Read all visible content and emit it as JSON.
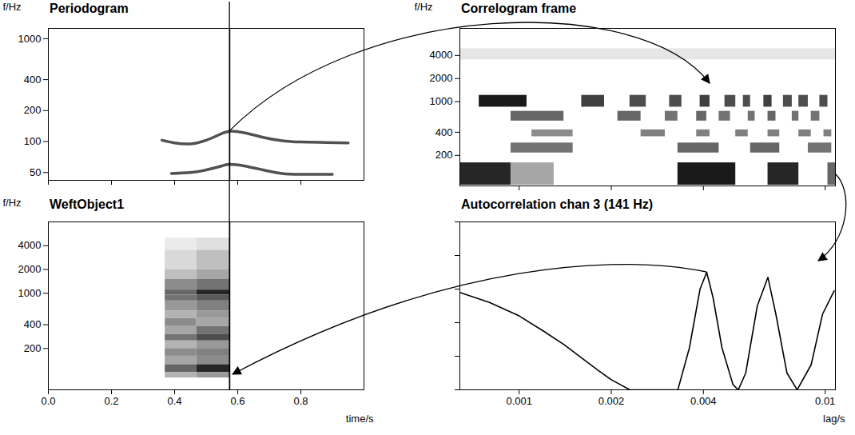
{
  "chart_data": [
    {
      "type": "line",
      "title": "Periodogram",
      "y_label": "f/Hz",
      "log": "y",
      "xlim": [
        0,
        1
      ],
      "xticks": [
        0,
        0.2,
        0.4,
        0.6,
        0.8
      ],
      "ylim": [
        42,
        1260
      ],
      "yticks": [
        50,
        100,
        200,
        400,
        1000
      ],
      "tick_labels": "y",
      "cursor_time": 0.575,
      "series": [
        {
          "color": "#333333",
          "x": [
            0.36,
            0.4,
            0.45,
            0.5,
            0.55,
            0.575,
            0.62,
            0.68,
            0.74,
            0.8,
            0.88,
            0.95
          ],
          "values": [
            103,
            97,
            95,
            103,
            120,
            126,
            122,
            110,
            102,
            99,
            98,
            97
          ]
        },
        {
          "color": "#333333",
          "x": [
            0.39,
            0.45,
            0.5,
            0.55,
            0.575,
            0.62,
            0.68,
            0.74,
            0.8,
            0.9
          ],
          "values": [
            49,
            50,
            53,
            58,
            60,
            58,
            53,
            49,
            48,
            48
          ]
        }
      ]
    },
    {
      "type": "heatmap",
      "title": "Correlogram frame",
      "y_label": "f/Hz",
      "log": true,
      "xlim": [
        0.00064,
        0.0108
      ],
      "xticks": [
        0.001,
        0.002,
        0.004,
        0.01
      ],
      "ylim": [
        80,
        9000
      ],
      "yticks": [
        200,
        400,
        1000,
        2000,
        4000
      ],
      "tick_labels": "y",
      "color": "#000000",
      "zlim": [
        0,
        1
      ],
      "cells": [
        {
          "x": [
            0.00064,
            0.0108
          ],
          "y": [
            3500,
            4900
          ],
          "value": 0.1
        },
        {
          "x": [
            0.00074,
            0.00106
          ],
          "y": [
            850,
            1210
          ],
          "value": 0.9
        },
        {
          "x": [
            0.0016,
            0.0019
          ],
          "y": [
            850,
            1210
          ],
          "value": 0.75
        },
        {
          "x": [
            0.0023,
            0.0026
          ],
          "y": [
            850,
            1210
          ],
          "value": 0.7
        },
        {
          "x": [
            0.0031,
            0.0034
          ],
          "y": [
            850,
            1210
          ],
          "value": 0.7
        },
        {
          "x": [
            0.0039,
            0.0042
          ],
          "y": [
            850,
            1210
          ],
          "value": 0.75
        },
        {
          "x": [
            0.0047,
            0.0051
          ],
          "y": [
            850,
            1210
          ],
          "value": 0.7
        },
        {
          "x": [
            0.0054,
            0.0057
          ],
          "y": [
            850,
            1210
          ],
          "value": 0.7
        },
        {
          "x": [
            0.0063,
            0.0067
          ],
          "y": [
            850,
            1210
          ],
          "value": 0.75
        },
        {
          "x": [
            0.0073,
            0.0078
          ],
          "y": [
            850,
            1210
          ],
          "value": 0.7
        },
        {
          "x": [
            0.0082,
            0.0088
          ],
          "y": [
            850,
            1210
          ],
          "value": 0.7
        },
        {
          "x": [
            0.0096,
            0.0102
          ],
          "y": [
            850,
            1210
          ],
          "value": 0.7
        },
        {
          "x": [
            0.00094,
            0.0014
          ],
          "y": [
            560,
            750
          ],
          "value": 0.6
        },
        {
          "x": [
            0.0021,
            0.0025
          ],
          "y": [
            560,
            750
          ],
          "value": 0.6
        },
        {
          "x": [
            0.003,
            0.0033
          ],
          "y": [
            560,
            750
          ],
          "value": 0.55
        },
        {
          "x": [
            0.0038,
            0.0041
          ],
          "y": [
            560,
            750
          ],
          "value": 0.6
        },
        {
          "x": [
            0.0045,
            0.0049
          ],
          "y": [
            560,
            750
          ],
          "value": 0.55
        },
        {
          "x": [
            0.0056,
            0.0059
          ],
          "y": [
            560,
            750
          ],
          "value": 0.55
        },
        {
          "x": [
            0.0065,
            0.0069
          ],
          "y": [
            560,
            750
          ],
          "value": 0.6
        },
        {
          "x": [
            0.0078,
            0.0082
          ],
          "y": [
            560,
            750
          ],
          "value": 0.55
        },
        {
          "x": [
            0.009,
            0.0096
          ],
          "y": [
            560,
            750
          ],
          "value": 0.55
        },
        {
          "x": [
            0.0011,
            0.0015
          ],
          "y": [
            350,
            430
          ],
          "value": 0.45
        },
        {
          "x": [
            0.0025,
            0.003
          ],
          "y": [
            350,
            430
          ],
          "value": 0.5
        },
        {
          "x": [
            0.0038,
            0.0042
          ],
          "y": [
            350,
            430
          ],
          "value": 0.5
        },
        {
          "x": [
            0.0051,
            0.0056
          ],
          "y": [
            350,
            430
          ],
          "value": 0.5
        },
        {
          "x": [
            0.0065,
            0.0071
          ],
          "y": [
            350,
            430
          ],
          "value": 0.5
        },
        {
          "x": [
            0.0082,
            0.009
          ],
          "y": [
            350,
            430
          ],
          "value": 0.5
        },
        {
          "x": [
            0.0099,
            0.0105
          ],
          "y": [
            350,
            430
          ],
          "value": 0.5
        },
        {
          "x": [
            0.00094,
            0.0015
          ],
          "y": [
            215,
            290
          ],
          "value": 0.55
        },
        {
          "x": [
            0.0033,
            0.0045
          ],
          "y": [
            215,
            290
          ],
          "value": 0.6
        },
        {
          "x": [
            0.0057,
            0.0071
          ],
          "y": [
            215,
            290
          ],
          "value": 0.6
        },
        {
          "x": [
            0.0088,
            0.0105
          ],
          "y": [
            215,
            290
          ],
          "value": 0.55
        },
        {
          "x": [
            0.00064,
            0.00094
          ],
          "y": [
            82,
            160
          ],
          "value": 0.85
        },
        {
          "x": [
            0.00094,
            0.0013
          ],
          "y": [
            82,
            160
          ],
          "value": 0.35
        },
        {
          "x": [
            0.0033,
            0.0051
          ],
          "y": [
            82,
            160
          ],
          "value": 0.9
        },
        {
          "x": [
            0.0065,
            0.0082
          ],
          "y": [
            82,
            160
          ],
          "value": 0.85
        },
        {
          "x": [
            0.0102,
            0.0108
          ],
          "y": [
            82,
            160
          ],
          "value": 0.6
        }
      ]
    },
    {
      "type": "heatmap",
      "title": "WeftObject1",
      "y_label": "f/Hz",
      "x_label": "time/s",
      "log": "y",
      "xlim": [
        0,
        1
      ],
      "xticks": [
        {
          "value": 0,
          "label": "0.0"
        },
        0.2,
        0.4,
        0.6,
        0.8
      ],
      "ylim": [
        60,
        8000
      ],
      "yticks": [
        200,
        400,
        1000,
        2000,
        4000
      ],
      "cursor_time": 0.575,
      "color": "#000000",
      "zlim": [
        0,
        1
      ],
      "cells": [
        {
          "x": [
            0.37,
            0.47
          ],
          "y": [
            3500,
            5000
          ],
          "value": 0.08
        },
        {
          "x": [
            0.47,
            0.575
          ],
          "y": [
            3500,
            5000
          ],
          "value": 0.12
        },
        {
          "x": [
            0.37,
            0.47
          ],
          "y": [
            2000,
            3500
          ],
          "value": 0.15
        },
        {
          "x": [
            0.47,
            0.575
          ],
          "y": [
            2000,
            3500
          ],
          "value": 0.25
        },
        {
          "x": [
            0.37,
            0.47
          ],
          "y": [
            1500,
            2000
          ],
          "value": 0.25
        },
        {
          "x": [
            0.47,
            0.575
          ],
          "y": [
            1500,
            2000
          ],
          "value": 0.35
        },
        {
          "x": [
            0.37,
            0.47
          ],
          "y": [
            1100,
            1500
          ],
          "value": 0.45
        },
        {
          "x": [
            0.47,
            0.575
          ],
          "y": [
            1100,
            1500
          ],
          "value": 0.55
        },
        {
          "x": [
            0.37,
            0.47
          ],
          "y": [
            950,
            1100
          ],
          "value": 0.6
        },
        {
          "x": [
            0.47,
            0.575
          ],
          "y": [
            950,
            1100
          ],
          "value": 0.85
        },
        {
          "x": [
            0.37,
            0.47
          ],
          "y": [
            800,
            950
          ],
          "value": 0.55
        },
        {
          "x": [
            0.47,
            0.575
          ],
          "y": [
            800,
            950
          ],
          "value": 0.65
        },
        {
          "x": [
            0.37,
            0.47
          ],
          "y": [
            600,
            800
          ],
          "value": 0.4
        },
        {
          "x": [
            0.47,
            0.575
          ],
          "y": [
            600,
            800
          ],
          "value": 0.5
        },
        {
          "x": [
            0.37,
            0.47
          ],
          "y": [
            480,
            600
          ],
          "value": 0.3
        },
        {
          "x": [
            0.47,
            0.575
          ],
          "y": [
            480,
            600
          ],
          "value": 0.4
        },
        {
          "x": [
            0.37,
            0.47
          ],
          "y": [
            380,
            480
          ],
          "value": 0.45
        },
        {
          "x": [
            0.47,
            0.575
          ],
          "y": [
            380,
            480
          ],
          "value": 0.35
        },
        {
          "x": [
            0.37,
            0.47
          ],
          "y": [
            300,
            380
          ],
          "value": 0.35
        },
        {
          "x": [
            0.47,
            0.575
          ],
          "y": [
            300,
            380
          ],
          "value": 0.55
        },
        {
          "x": [
            0.37,
            0.47
          ],
          "y": [
            250,
            300
          ],
          "value": 0.55
        },
        {
          "x": [
            0.47,
            0.575
          ],
          "y": [
            250,
            300
          ],
          "value": 0.7
        },
        {
          "x": [
            0.37,
            0.47
          ],
          "y": [
            200,
            250
          ],
          "value": 0.3
        },
        {
          "x": [
            0.47,
            0.575
          ],
          "y": [
            200,
            250
          ],
          "value": 0.4
        },
        {
          "x": [
            0.37,
            0.47
          ],
          "y": [
            160,
            200
          ],
          "value": 0.45
        },
        {
          "x": [
            0.47,
            0.575
          ],
          "y": [
            160,
            200
          ],
          "value": 0.5
        },
        {
          "x": [
            0.37,
            0.47
          ],
          "y": [
            125,
            160
          ],
          "value": 0.35
        },
        {
          "x": [
            0.47,
            0.575
          ],
          "y": [
            125,
            160
          ],
          "value": 0.45
        },
        {
          "x": [
            0.37,
            0.47
          ],
          "y": [
            100,
            125
          ],
          "value": 0.6
        },
        {
          "x": [
            0.47,
            0.575
          ],
          "y": [
            100,
            125
          ],
          "value": 0.85
        },
        {
          "x": [
            0.37,
            0.47
          ],
          "y": [
            85,
            100
          ],
          "value": 0.3
        },
        {
          "x": [
            0.47,
            0.575
          ],
          "y": [
            85,
            100
          ],
          "value": 0.4
        }
      ]
    },
    {
      "type": "line",
      "title": "Autocorrelation chan 3 (141 Hz)",
      "x_label": "lag/s",
      "log": "x",
      "xlim": [
        0.00064,
        0.0108
      ],
      "xticks": [
        0.001,
        0.002,
        0.004,
        0.01
      ],
      "ylim": [
        0,
        1
      ],
      "yticks": [
        0,
        0.2,
        0.4,
        0.6,
        0.8,
        1
      ],
      "tick_labels": "x",
      "color": "#000000",
      "x": [
        0.00064,
        0.0008,
        0.001,
        0.0012,
        0.0014,
        0.0016,
        0.0018,
        0.002,
        0.0023,
        0.0033,
        0.0036,
        0.0039,
        0.0041,
        0.0043,
        0.0046,
        0.005,
        0.0052,
        0.0055,
        0.006,
        0.0065,
        0.0069,
        0.0075,
        0.0081,
        0.009,
        0.0098,
        0.0107
      ],
      "values": [
        0.58,
        0.52,
        0.44,
        0.35,
        0.27,
        0.19,
        0.12,
        0.06,
        0,
        0,
        0.25,
        0.6,
        0.7,
        0.55,
        0.25,
        0.03,
        0,
        0.1,
        0.5,
        0.67,
        0.45,
        0.1,
        0,
        0.15,
        0.45,
        0.59
      ]
    }
  ]
}
